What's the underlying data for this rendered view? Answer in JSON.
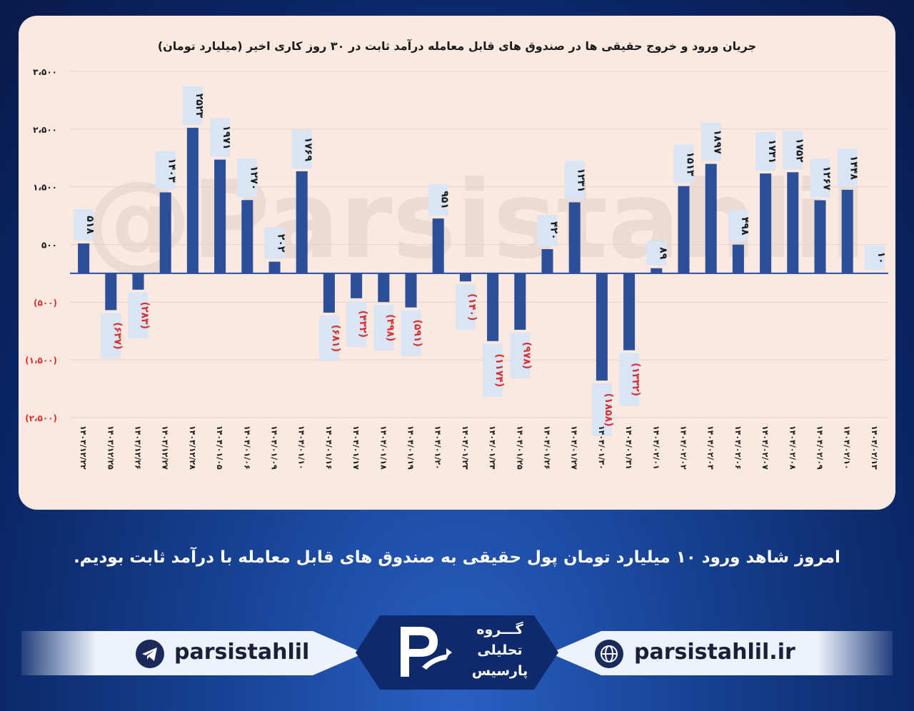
{
  "chart_data": {
    "type": "bar",
    "title": "جریان ورود و خروج حقیقی ها در صندوق های قابل معامله درآمد ثابت در ۳۰ روز کاری اخیر (میلیارد تومان)",
    "watermark": "@Parsistahlil",
    "ylim": [
      -2500,
      3500
    ],
    "yticks": [
      3500,
      2500,
      1500,
      500,
      -500,
      -1500,
      -2500
    ],
    "ytick_labels": [
      "۳،۵۰۰",
      "۲،۵۰۰",
      "۱،۵۰۰",
      "۵۰۰",
      "(۵۰۰)",
      "(۱،۵۰۰)",
      "(۲،۵۰۰)"
    ],
    "grid": true,
    "categories": [
      "۱۴۰۳/۱۲/۲۲",
      "۱۴۰۳/۱۲/۲۵",
      "۱۴۰۳/۱۲/۲۶",
      "۱۴۰۳/۱۲/۲۷",
      "۱۴۰۳/۱۲/۲۸",
      "۱۴۰۴/۰۱/۰۵",
      "۱۴۰۴/۰۱/۰۶",
      "۱۴۰۴/۰۱/۰۹",
      "۱۴۰۴/۰۱/۱۰",
      "۱۴۰۴/۰۱/۱۶",
      "۱۴۰۴/۰۱/۱۷",
      "۱۴۰۴/۰۱/۱۸",
      "۱۴۰۴/۰۱/۱۹",
      "۱۴۰۴/۰۱/۲۰",
      "۱۴۰۴/۰۱/۲۳",
      "۱۴۰۴/۰۱/۲۴",
      "۱۴۰۴/۰۱/۲۵",
      "۱۴۰۴/۰۱/۲۶",
      "۱۴۰۴/۰۱/۲۷",
      "۱۴۰۴/۰۱/۳۰",
      "۱۴۰۴/۰۱/۳۱",
      "۱۴۰۴/۰۲/۰۱",
      "۱۴۰۴/۰۲/۰۲",
      "۱۴۰۴/۰۲/۰۳",
      "۱۴۰۴/۰۲/۰۶",
      "۱۴۰۴/۰۲/۰۷",
      "۱۴۰۴/۰۲/۰۸",
      "۱۴۰۴/۰۲/۰۹",
      "۱۴۰۴/۰۲/۱۰",
      "۱۴۰۴/۰۲/۱۳"
    ],
    "values": [
      518,
      -637,
      -283,
      1403,
      2523,
      1971,
      1270,
      202,
      1769,
      -681,
      -432,
      -498,
      -591,
      951,
      -140,
      -1174,
      -978,
      420,
      1231,
      -1858,
      -1332,
      89,
      1513,
      1897,
      498,
      1731,
      1752,
      1267,
      1448,
      10
    ],
    "value_labels": [
      "۵۱۸",
      "(۶۳۷)",
      "(۲۸۳)",
      "۱۴۰۳",
      "۲۵۲۳",
      "۱۹۷۱",
      "۱۲۷۰",
      "۲۰۲",
      "۱۷۶۹",
      "(۶۸۱)",
      "(۴۳۲)",
      "(۴۹۸)",
      "(۵۹۱)",
      "۹۵۱",
      "(۱۴۰)",
      "(۱۱۷۴)",
      "(۹۷۸)",
      "۴۲۰",
      "۱۲۳۱",
      "(۱۸۵۸)",
      "(۱۳۳۲)",
      "۸۹",
      "۱۵۱۳",
      "۱۸۹۷",
      "۴۹۸",
      "۱۷۳۱",
      "۱۷۵۲",
      "۱۲۶۷",
      "۱۴۴۸",
      "۱۰"
    ],
    "colors": {
      "bar": "#2c4f9a",
      "negative_text": "#d9302c",
      "positive_text": "#1a1a1a",
      "label_bg": "#d9e4f5"
    }
  },
  "caption": "امروز شاهد ورود ۱۰ میلیارد تومان پول حقیقی به صندوق های قابل معامله با درآمد ثابت بودیم.",
  "footer": {
    "telegram_handle": "parsistahlil",
    "website": "parsistahlil.ir",
    "logo_line1": "گـــروه",
    "logo_line2": "تحلیلی",
    "logo_line3": "پارسیس",
    "telegram_icon": "telegram-icon",
    "web_icon": "globe-icon"
  }
}
